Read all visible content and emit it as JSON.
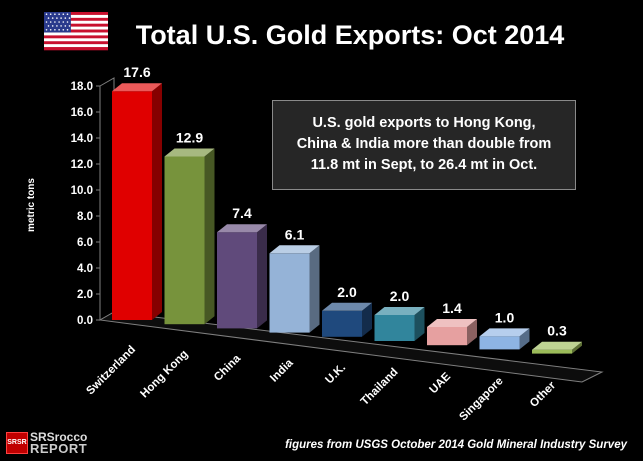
{
  "title": "Total U.S. Gold Exports: Oct 2014",
  "flag": "us-flag",
  "annotation": {
    "lines": [
      "U.S. gold exports to Hong Kong,",
      "China & India more than double from",
      "11.8 mt in Sept, to 26.4 mt in Oct."
    ]
  },
  "source": "figures from USGS October 2014 Gold Mineral Industry Survey",
  "logo": {
    "badge": "SRSR",
    "line1": "SRSrocco",
    "line2": "REPORT"
  },
  "chart_data": {
    "type": "bar",
    "title": "Total U.S. Gold Exports: Oct 2014",
    "xlabel": "",
    "ylabel": "metric tons",
    "ylim": [
      0,
      18
    ],
    "yticks": [
      "0.0",
      "2.0",
      "4.0",
      "6.0",
      "8.0",
      "10.0",
      "12.0",
      "14.0",
      "16.0",
      "18.0"
    ],
    "categories": [
      "Switzerland",
      "Hong Kong",
      "China",
      "India",
      "U.K.",
      "Thailand",
      "UAE",
      "Singapore",
      "Other"
    ],
    "values": [
      17.6,
      12.9,
      7.4,
      6.1,
      2.0,
      2.0,
      1.4,
      1.0,
      0.3
    ],
    "value_labels": [
      "17.6",
      "12.9",
      "7.4",
      "6.1",
      "2.0",
      "2.0",
      "1.4",
      "1.0",
      "0.3"
    ],
    "colors": [
      "#e00000",
      "#77933c",
      "#604a7b",
      "#95b3d7",
      "#1f497d",
      "#31859c",
      "#e6a0a0",
      "#8eb4e3",
      "#9bbb59"
    ],
    "grid": false,
    "legend": "none"
  }
}
